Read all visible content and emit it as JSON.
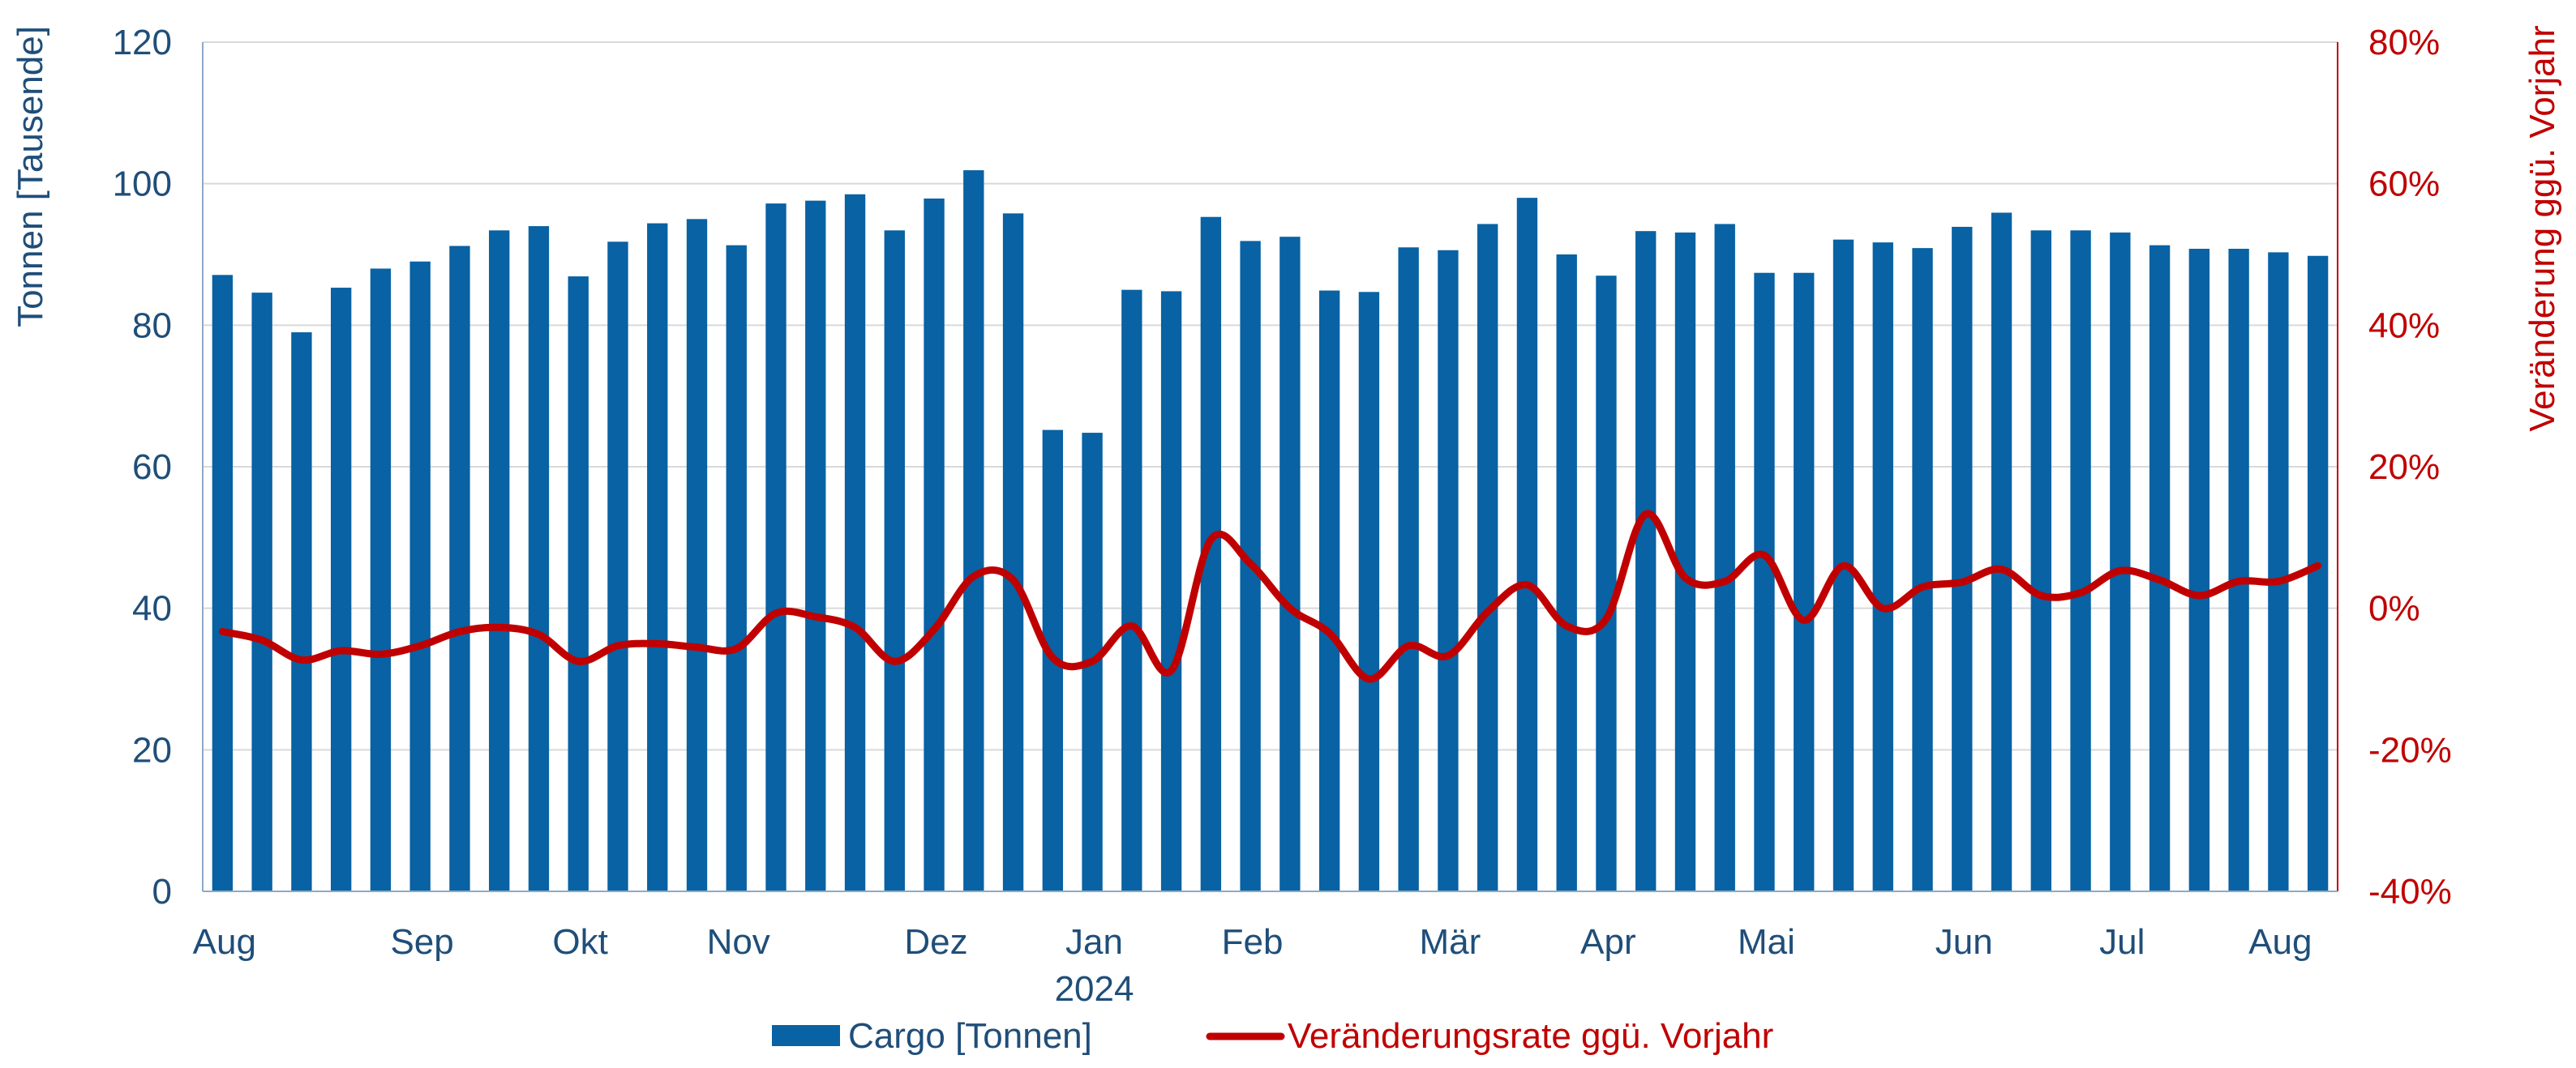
{
  "colors": {
    "bar": "#0862A3",
    "line": "#C00000",
    "left_axis_text": "#1F4E79",
    "right_axis_text": "#C00000",
    "grid": "#D9D9D9"
  },
  "chart_data": {
    "type": "bar",
    "title": "",
    "grid": true,
    "legend_position": "bottom",
    "left_axis": {
      "label": "Tonnen [Tausende]",
      "range": [
        0,
        120
      ],
      "ticks": [
        "0",
        "20",
        "40",
        "60",
        "80",
        "100",
        "120"
      ]
    },
    "right_axis": {
      "label": "Veränderung ggü. Vorjahr",
      "range": [
        -40,
        80
      ],
      "ticks": [
        "-40%",
        "-20%",
        "0%",
        "20%",
        "40%",
        "60%",
        "80%"
      ]
    },
    "x_labels": [
      {
        "index": 0,
        "label": "Aug"
      },
      {
        "index": 5,
        "label": "Sep"
      },
      {
        "index": 9,
        "label": "Okt"
      },
      {
        "index": 13,
        "label": "Nov"
      },
      {
        "index": 18,
        "label": "Dez"
      },
      {
        "index": 22,
        "label": "Jan",
        "sublabel": "2024"
      },
      {
        "index": 26,
        "label": "Feb"
      },
      {
        "index": 31,
        "label": "Mär"
      },
      {
        "index": 35,
        "label": "Apr"
      },
      {
        "index": 39,
        "label": "Mai"
      },
      {
        "index": 44,
        "label": "Jun"
      },
      {
        "index": 48,
        "label": "Jul"
      },
      {
        "index": 52,
        "label": "Aug"
      }
    ],
    "series": [
      {
        "name": "Cargo [Tonnen]",
        "type": "bar",
        "axis": "left",
        "values": [
          87.1,
          84.6,
          79.0,
          85.3,
          88.0,
          89.0,
          91.2,
          93.4,
          94.0,
          86.9,
          91.8,
          94.4,
          95.0,
          91.3,
          97.2,
          97.6,
          98.5,
          93.4,
          97.9,
          101.9,
          95.8,
          65.2,
          64.8,
          85.0,
          84.8,
          95.3,
          91.9,
          92.5,
          84.9,
          84.7,
          91.0,
          90.6,
          94.3,
          98.0,
          90.0,
          87.0,
          93.3,
          93.1,
          94.3,
          87.4,
          87.4,
          92.1,
          91.7,
          90.9,
          93.9,
          95.9,
          93.4,
          93.4,
          93.1,
          91.3,
          90.8,
          90.8,
          90.3,
          89.8
        ]
      },
      {
        "name": "Veränderungsrate ggü. Vorjahr",
        "type": "line",
        "axis": "right",
        "values": [
          -3.3,
          -4.5,
          -7.3,
          -6.0,
          -6.5,
          -5.3,
          -3.3,
          -2.7,
          -3.7,
          -7.5,
          -5.3,
          -5.0,
          -5.5,
          -5.7,
          -0.7,
          -1.2,
          -2.7,
          -7.5,
          -3.0,
          4.5,
          4.0,
          -7.0,
          -7.5,
          -2.5,
          -8.8,
          9.7,
          6.3,
          0.0,
          -3.5,
          -10.0,
          -5.3,
          -6.7,
          -0.5,
          3.3,
          -2.5,
          -1.5,
          13.3,
          4.3,
          3.8,
          7.5,
          -1.7,
          6.0,
          0.0,
          3.0,
          3.7,
          5.5,
          1.8,
          2.2,
          5.3,
          4.0,
          1.8,
          3.8,
          3.8,
          6.0
        ]
      }
    ]
  }
}
